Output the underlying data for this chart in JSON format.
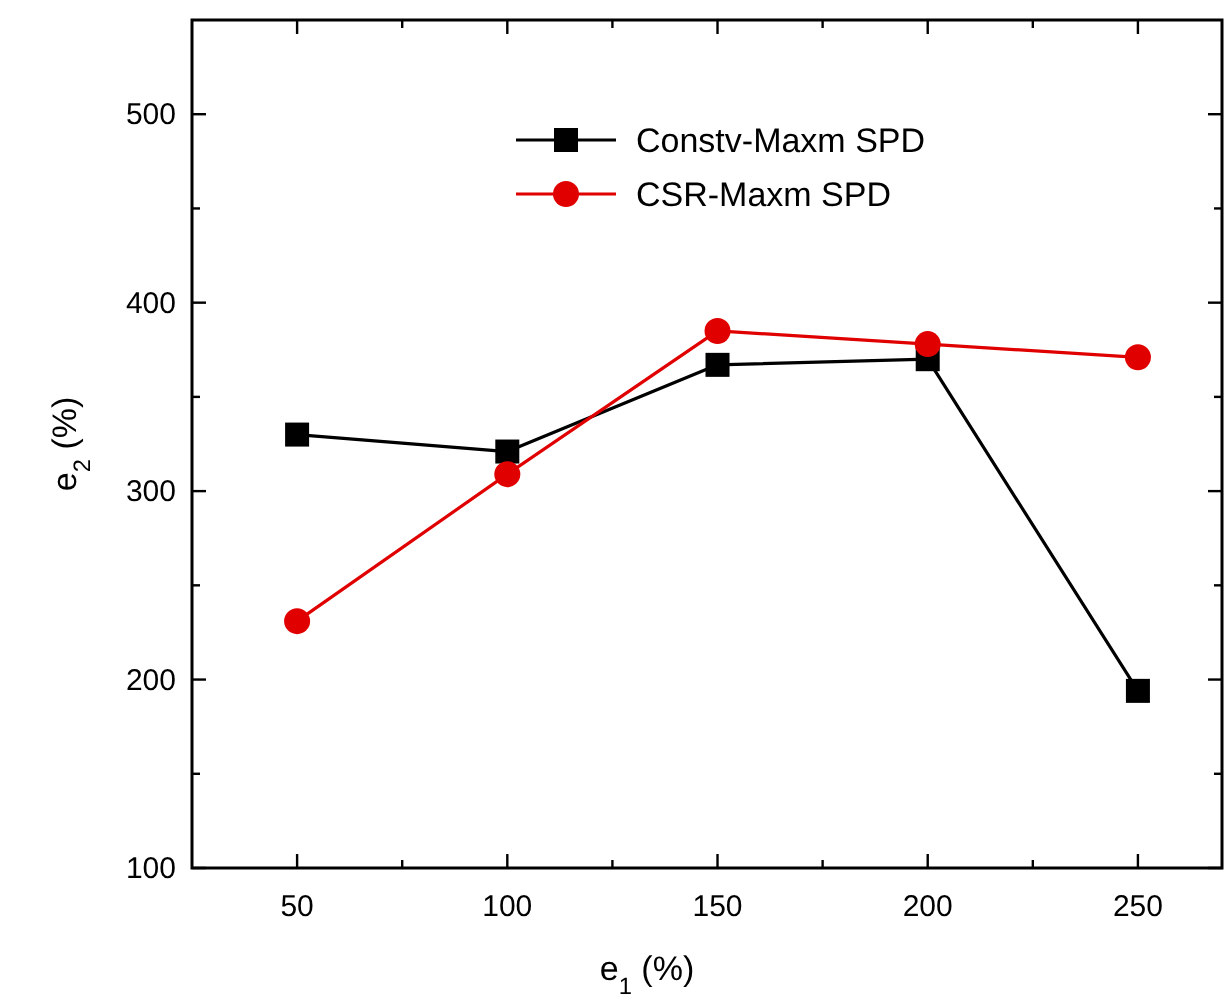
{
  "chart_data": {
    "type": "line",
    "xlabel": "e$_{1}$ (%)",
    "ylabel": "e$_{2}$ (%)",
    "x": [
      50,
      100,
      150,
      200,
      250
    ],
    "series": [
      {
        "name": "Constv-Maxm SPD",
        "color": "#000000",
        "marker": "square",
        "values": [
          330,
          321,
          367,
          370,
          194
        ]
      },
      {
        "name": "CSR-Maxm SPD",
        "color": "#e00000",
        "marker": "circle",
        "values": [
          231,
          309,
          385,
          378,
          371
        ]
      }
    ],
    "xlim": [
      25,
      270
    ],
    "xticks": [
      50,
      {
        "value": 75,
        "label": null
      },
      100,
      {
        "value": 125,
        "label": null
      },
      150,
      {
        "value": 175,
        "label": null
      },
      200,
      {
        "value": 225,
        "label": null
      },
      250
    ],
    "ylim": [
      100,
      550
    ],
    "yticks": [
      100,
      {
        "value": 150,
        "label": null
      },
      200,
      {
        "value": 250,
        "label": null
      },
      300,
      {
        "value": 350,
        "label": null
      },
      400,
      {
        "value": 450,
        "label": null
      },
      500
    ],
    "legend": "top",
    "grid": false,
    "line_style": "solid"
  }
}
